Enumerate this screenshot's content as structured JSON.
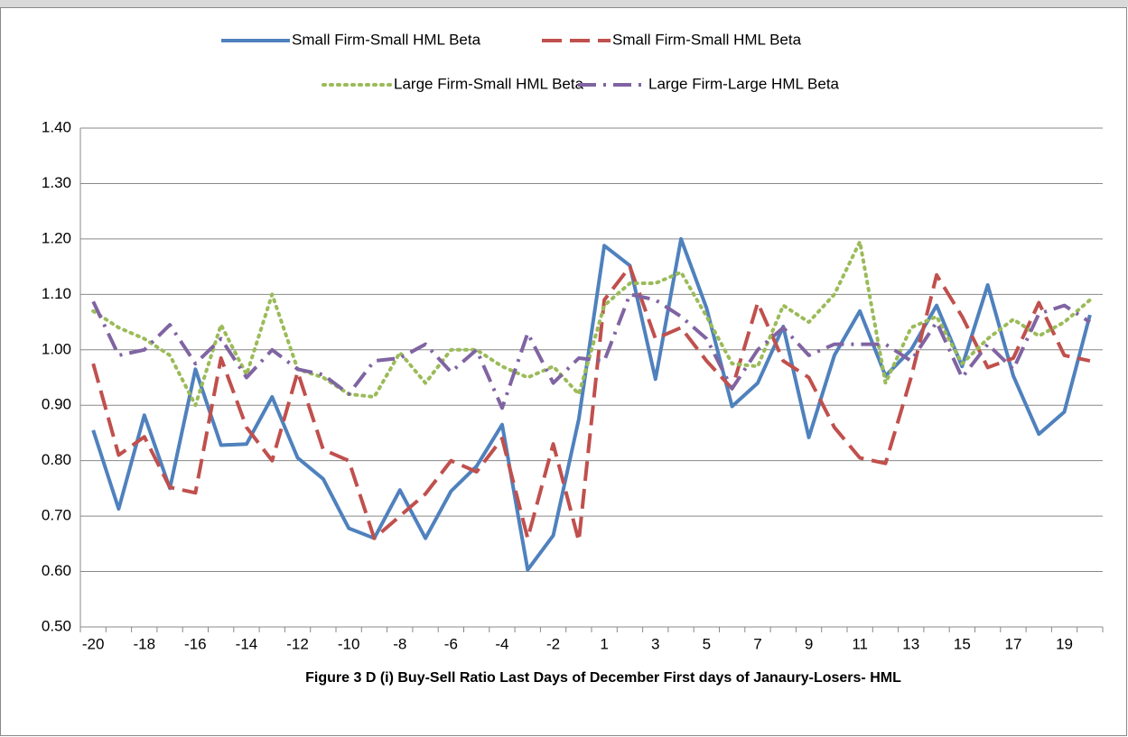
{
  "chart_data": {
    "type": "line",
    "title": "Figure 3 D (i) Buy-Sell Ratio Last Days of December First days of Janaury-Losers- HML",
    "categories": [
      -20,
      null,
      -18,
      null,
      -16,
      null,
      -14,
      null,
      -12,
      null,
      -10,
      null,
      -8,
      null,
      -6,
      null,
      -4,
      null,
      -2,
      null,
      1,
      null,
      3,
      null,
      5,
      null,
      7,
      null,
      9,
      null,
      11,
      null,
      13,
      null,
      15,
      null,
      17,
      null,
      19,
      null
    ],
    "series": [
      {
        "name": "Small Firm-Small HML Beta",
        "color": "#4f81bd",
        "style": "solid",
        "values": [
          0.855,
          0.713,
          0.882,
          0.75,
          0.965,
          0.828,
          0.83,
          0.915,
          0.805,
          0.767,
          0.678,
          0.66,
          0.747,
          0.66,
          0.745,
          0.79,
          0.865,
          0.603,
          0.665,
          0.875,
          1.188,
          1.152,
          0.947,
          1.2,
          1.075,
          0.898,
          0.94,
          1.042,
          0.842,
          0.99,
          1.07,
          0.953,
          1.0,
          1.08,
          0.97,
          1.117,
          0.953,
          0.848,
          0.888,
          1.063
        ]
      },
      {
        "name": "Small Firm-Small HML Beta",
        "color": "#c0504d",
        "style": "dash",
        "values": [
          0.975,
          0.81,
          0.843,
          0.752,
          0.742,
          0.985,
          0.86,
          0.8,
          0.96,
          0.82,
          0.8,
          0.66,
          0.7,
          0.74,
          0.8,
          0.78,
          0.84,
          0.66,
          0.83,
          0.655,
          1.09,
          1.15,
          1.02,
          1.04,
          0.98,
          0.93,
          1.085,
          0.98,
          0.95,
          0.86,
          0.805,
          0.795,
          0.95,
          1.135,
          1.06,
          0.968,
          0.985,
          1.085,
          0.99,
          0.98
        ]
      },
      {
        "name": "Large Firm-Small HML Beta",
        "color": "#9bbb59",
        "style": "dot",
        "values": [
          1.07,
          1.04,
          1.02,
          0.99,
          0.9,
          1.045,
          0.955,
          1.1,
          0.965,
          0.95,
          0.92,
          0.915,
          0.995,
          0.94,
          1.0,
          1.0,
          0.97,
          0.95,
          0.97,
          0.92,
          1.08,
          1.12,
          1.12,
          1.14,
          1.06,
          0.975,
          0.97,
          1.08,
          1.05,
          1.1,
          1.195,
          0.94,
          1.04,
          1.06,
          0.975,
          1.02,
          1.055,
          1.025,
          1.05,
          1.09
        ]
      },
      {
        "name": "Large Firm-Large HML Beta",
        "color": "#8064a2",
        "style": "dashdot",
        "values": [
          1.087,
          0.99,
          1.0,
          1.045,
          0.975,
          1.02,
          0.95,
          1.0,
          0.965,
          0.955,
          0.92,
          0.98,
          0.985,
          1.01,
          0.96,
          1.0,
          0.895,
          1.03,
          0.94,
          0.985,
          0.98,
          1.1,
          1.09,
          1.06,
          1.02,
          0.93,
          1.0,
          1.04,
          0.99,
          1.01,
          1.01,
          1.01,
          0.98,
          1.05,
          0.95,
          1.01,
          0.965,
          1.065,
          1.08,
          1.05
        ]
      }
    ],
    "ylim": [
      0.5,
      1.4
    ],
    "yticks": [
      {
        "value": 0.5,
        "label": "0.50"
      },
      {
        "value": 0.6,
        "label": "0.60"
      },
      {
        "value": 0.7,
        "label": "0.70"
      },
      {
        "value": 0.8,
        "label": "0.80"
      },
      {
        "value": 0.9,
        "label": "0.90"
      },
      {
        "value": 1.0,
        "label": "1.00"
      },
      {
        "value": 1.1,
        "label": "1.10"
      },
      {
        "value": 1.2,
        "label": "1.20"
      },
      {
        "value": 1.3,
        "label": "1.30"
      },
      {
        "value": 1.4,
        "label": "1.40"
      }
    ],
    "grid": true,
    "legend": "top"
  }
}
